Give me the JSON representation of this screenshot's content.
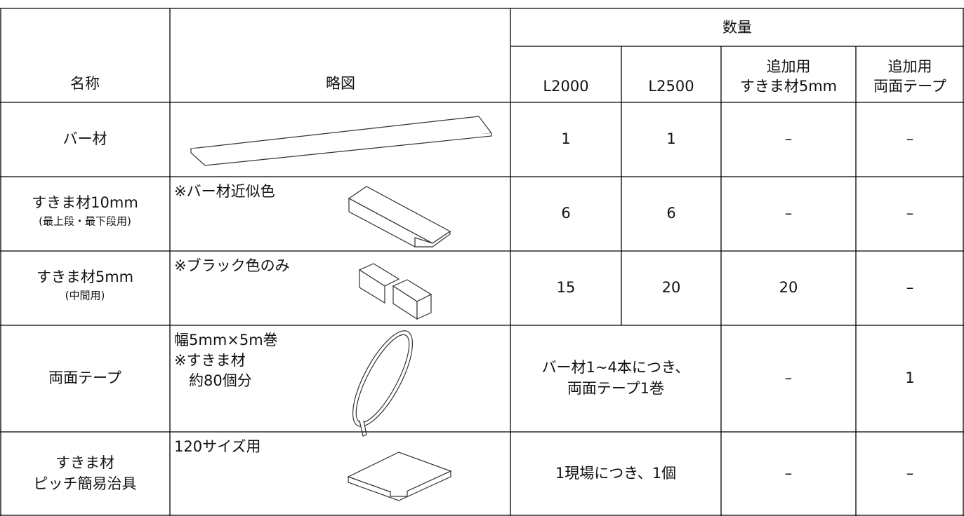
{
  "header": {
    "name": "名称",
    "diagram": "略図",
    "quantity": "数量",
    "columns": [
      [
        "L2000"
      ],
      [
        "L2500"
      ],
      [
        "追加用",
        "すきま材5mm"
      ],
      [
        "追加用",
        "両面テープ"
      ]
    ]
  },
  "rows": [
    {
      "name": [
        "バー材"
      ],
      "sub": [],
      "note": [],
      "cells": [
        [
          "1"
        ],
        [
          "1"
        ],
        [
          "–"
        ],
        [
          "–"
        ]
      ]
    },
    {
      "name": [
        "すきま材10mm"
      ],
      "sub": [
        "(最上段・最下段用)"
      ],
      "note": [
        "※バー材近似色"
      ],
      "cells": [
        [
          "6"
        ],
        [
          "6"
        ],
        [
          "–"
        ],
        [
          "–"
        ]
      ]
    },
    {
      "name": [
        "すきま材5mm"
      ],
      "sub": [
        "(中間用)"
      ],
      "note": [
        "※ブラック色のみ"
      ],
      "cells": [
        [
          "15"
        ],
        [
          "20"
        ],
        [
          "20"
        ],
        [
          "–"
        ]
      ]
    },
    {
      "name": [
        "両面テープ"
      ],
      "sub": [],
      "note": [
        "幅5mm×5m巻",
        "※すきま材",
        "約80個分"
      ],
      "cells": [
        [
          "バー材1~4本につき、",
          "両面テープ1巻"
        ],
        [
          "–"
        ],
        [
          "1"
        ]
      ]
    },
    {
      "name": [
        "すきま材",
        "ピッチ簡易治具"
      ],
      "sub": [],
      "note": [
        "120サイズ用"
      ],
      "cells": [
        [
          "1現場につき、1個"
        ],
        [
          "–"
        ],
        [
          "–"
        ]
      ]
    }
  ]
}
